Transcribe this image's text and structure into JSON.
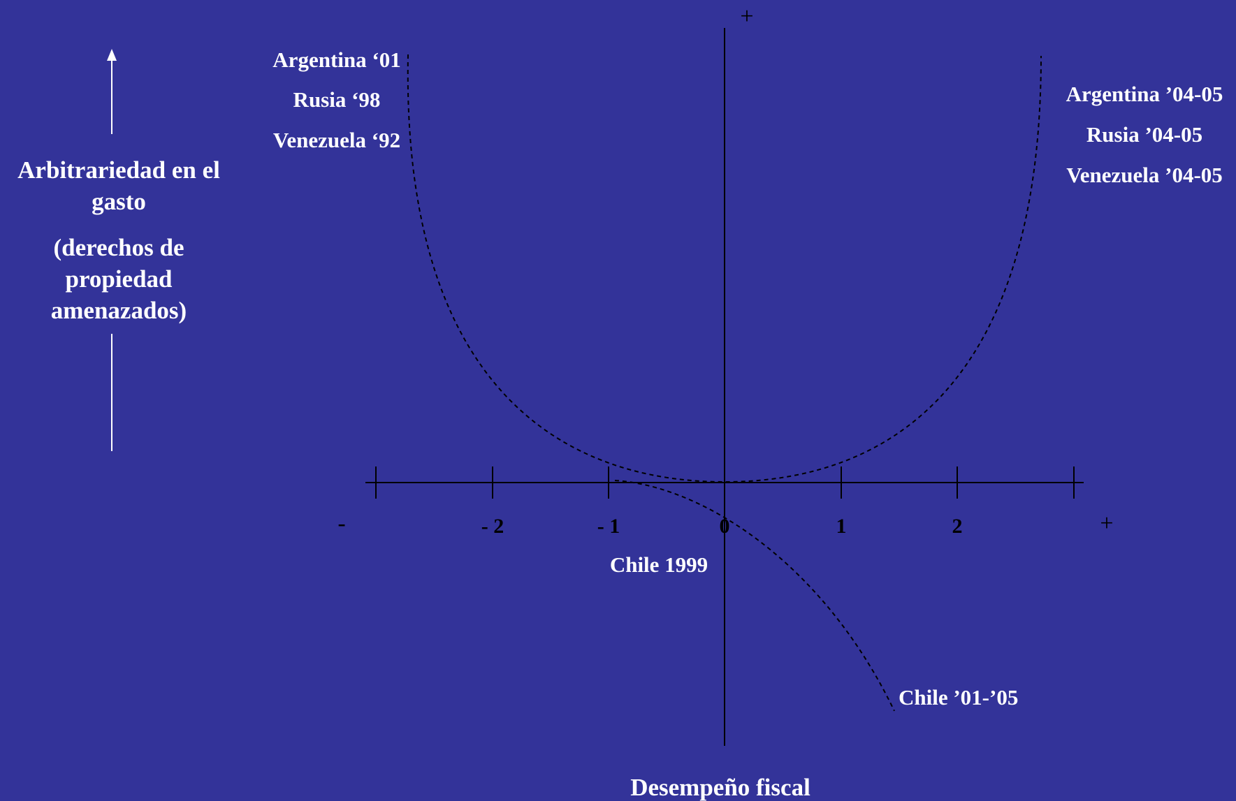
{
  "y_axis_label": {
    "line1": "Arbitrariedad en el",
    "line2": "gasto",
    "line3": "(derechos de",
    "line4": "propiedad",
    "line5": "amenazados)"
  },
  "x_axis_label": "Desempeño fiscal",
  "axis_signs": {
    "x_minus": "-",
    "x_plus": "+",
    "y_plus": "+"
  },
  "ticks": [
    {
      "value": -2,
      "label": "- 2"
    },
    {
      "value": -1,
      "label": "- 1"
    },
    {
      "value": 0,
      "label": "0"
    },
    {
      "value": 1,
      "label": "1"
    },
    {
      "value": 2,
      "label": "2"
    }
  ],
  "labels": {
    "left_group": [
      "Argentina ‘01",
      "Rusia ‘98",
      "Venezuela ‘92"
    ],
    "right_group": [
      "Argentina ’04-05",
      "Rusia ’04-05",
      "Venezuela ’04-05"
    ],
    "chile_1999": "Chile 1999",
    "chile_01_05": "Chile ’01-’05"
  },
  "colors": {
    "background": "#333399",
    "axis": "#000000",
    "text": "#ffffff",
    "curve": "#000000"
  }
}
